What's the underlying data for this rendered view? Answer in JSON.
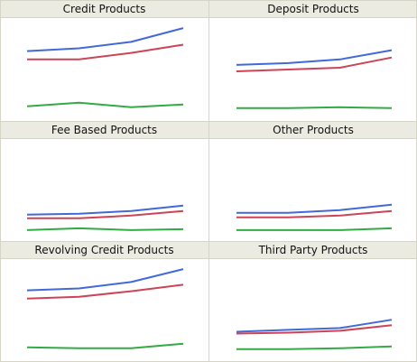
{
  "colors": {
    "blue": "#4169d8",
    "red": "#cc4455",
    "green": "#33aa44"
  },
  "chart_data": [
    {
      "type": "line",
      "title": "Credit Products",
      "x": [
        1,
        2,
        3,
        4
      ],
      "ylim": [
        0,
        100
      ],
      "series": [
        {
          "color": "#4169d8",
          "values": [
            70,
            73,
            80,
            95
          ]
        },
        {
          "color": "#cc4455",
          "values": [
            61,
            61,
            68,
            77
          ]
        },
        {
          "color": "#33aa44",
          "values": [
            10,
            14,
            9,
            12
          ]
        }
      ]
    },
    {
      "type": "line",
      "title": "Deposit Products",
      "x": [
        1,
        2,
        3,
        4
      ],
      "ylim": [
        0,
        100
      ],
      "series": [
        {
          "color": "#4169d8",
          "values": [
            55,
            57,
            61,
            71
          ]
        },
        {
          "color": "#cc4455",
          "values": [
            48,
            50,
            52,
            63
          ]
        },
        {
          "color": "#33aa44",
          "values": [
            8,
            8,
            9,
            8
          ]
        }
      ]
    },
    {
      "type": "line",
      "title": "Fee Based Products",
      "x": [
        1,
        2,
        3,
        4
      ],
      "ylim": [
        0,
        100
      ],
      "series": [
        {
          "color": "#4169d8",
          "values": [
            23,
            24,
            27,
            33
          ]
        },
        {
          "color": "#cc4455",
          "values": [
            19,
            19,
            22,
            27
          ]
        },
        {
          "color": "#33aa44",
          "values": [
            6,
            8,
            6,
            7
          ]
        }
      ]
    },
    {
      "type": "line",
      "title": "Other Products",
      "x": [
        1,
        2,
        3,
        4
      ],
      "ylim": [
        0,
        100
      ],
      "series": [
        {
          "color": "#4169d8",
          "values": [
            25,
            25,
            28,
            34
          ]
        },
        {
          "color": "#cc4455",
          "values": [
            20,
            20,
            22,
            27
          ]
        },
        {
          "color": "#33aa44",
          "values": [
            6,
            6,
            6,
            8
          ]
        }
      ]
    },
    {
      "type": "line",
      "title": "Revolving Credit Products",
      "x": [
        1,
        2,
        3,
        4
      ],
      "ylim": [
        0,
        100
      ],
      "series": [
        {
          "color": "#4169d8",
          "values": [
            72,
            74,
            81,
            95
          ]
        },
        {
          "color": "#cc4455",
          "values": [
            63,
            65,
            71,
            78
          ]
        },
        {
          "color": "#33aa44",
          "values": [
            10,
            9,
            9,
            14
          ]
        }
      ]
    },
    {
      "type": "line",
      "title": "Third Party Products",
      "x": [
        1,
        2,
        3,
        4
      ],
      "ylim": [
        0,
        100
      ],
      "series": [
        {
          "color": "#4169d8",
          "values": [
            27,
            29,
            31,
            40
          ]
        },
        {
          "color": "#cc4455",
          "values": [
            25,
            26,
            28,
            34
          ]
        },
        {
          "color": "#33aa44",
          "values": [
            8,
            8,
            9,
            11
          ]
        }
      ]
    }
  ]
}
